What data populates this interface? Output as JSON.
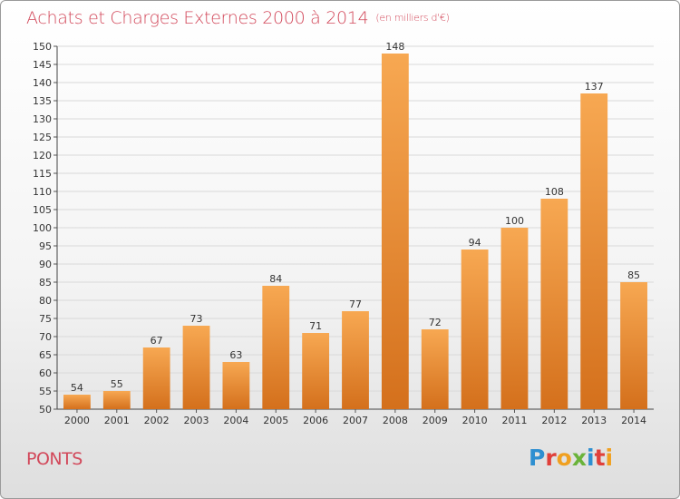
{
  "header": {
    "title": "Achats et Charges Externes 2000 à 2014",
    "unit": "(en milliers d'€)"
  },
  "footer": {
    "commune": "PONTS",
    "logo_text": "Proxiti",
    "logo_colors": [
      "#2e8fd1",
      "#e0403a",
      "#f0a020",
      "#6ab33a",
      "#2e8fd1",
      "#e0403a",
      "#f0a020"
    ]
  },
  "colors": {
    "bar_light": "#f7a852",
    "bar_dark": "#d4701c",
    "title": "#d2485a",
    "grid": "#d9d9d9"
  },
  "chart_data": {
    "type": "bar",
    "title": "Achats et Charges Externes 2000 à 2014",
    "categories": [
      "2000",
      "2001",
      "2002",
      "2003",
      "2004",
      "2005",
      "2006",
      "2007",
      "2008",
      "2009",
      "2010",
      "2011",
      "2012",
      "2013",
      "2014"
    ],
    "values": [
      54,
      55,
      67,
      73,
      63,
      84,
      71,
      77,
      148,
      72,
      94,
      100,
      108,
      137,
      85
    ],
    "ylim": [
      50,
      150
    ],
    "ytick_step": 5,
    "grid": true,
    "xlabel": "",
    "ylabel": ""
  }
}
